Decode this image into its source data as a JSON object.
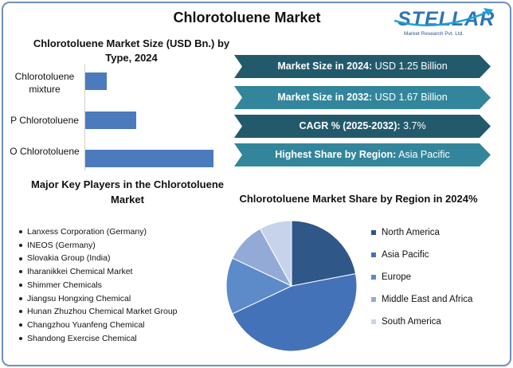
{
  "header": {
    "title": "Chlorotoluene Market"
  },
  "logo": {
    "brand": "STELLAR",
    "tagline": "Market Research Pvt. Ltd."
  },
  "highlights": [
    {
      "label": "Market Size in 2024:",
      "value": "USD 1.25 Billion",
      "color": "#225a6c"
    },
    {
      "label": "Market Size in 2032:",
      "value": "USD 1.67 Billion",
      "color": "#33859b"
    },
    {
      "label": "CAGR % (2025-2032):",
      "value": "3.7%",
      "color": "#225a6c"
    },
    {
      "label": "Highest Share by Region:",
      "value": "Asia Pacific",
      "color": "#33859b"
    }
  ],
  "key_players": {
    "title": "Major Key Players in the Chlorotoluene Market",
    "items": [
      "Lanxess Corporation (Germany)",
      "INEOS (Germany)",
      "Slovakia Group (India)",
      "Iharanikkei Chemical Market",
      "Shimmer Chemicals",
      "Jiangsu Hongxing Chemical",
      "Hunan Zhuzhou Chemical Market Group",
      "Changzhou Yuanfeng Chemical",
      "Shandong Exercise Chemical"
    ]
  },
  "chart_data": [
    {
      "type": "bar",
      "orientation": "horizontal",
      "title": "Chlorotoluene Market Size (USD Bn.) by Type, 2024",
      "categories": [
        "Chlorotoluene mixture",
        "P Chlorotoluene",
        "O Chlorotoluene"
      ],
      "values": [
        0.17,
        0.4,
        1.0
      ],
      "xlim": [
        0,
        1.0
      ],
      "grid": false,
      "bar_color": "#4b7bbd"
    },
    {
      "type": "pie",
      "title": "Chlorotoluene Market Share by Region in 2024%",
      "categories": [
        "North America",
        "Asia Pacific",
        "Europe",
        "Middle East and Africa",
        "South America"
      ],
      "values": [
        22,
        46,
        14,
        10,
        8
      ],
      "colors": [
        "#2f5788",
        "#4472b8",
        "#5d8ac8",
        "#93aad7",
        "#c7d3ea"
      ],
      "legend": "right"
    }
  ]
}
